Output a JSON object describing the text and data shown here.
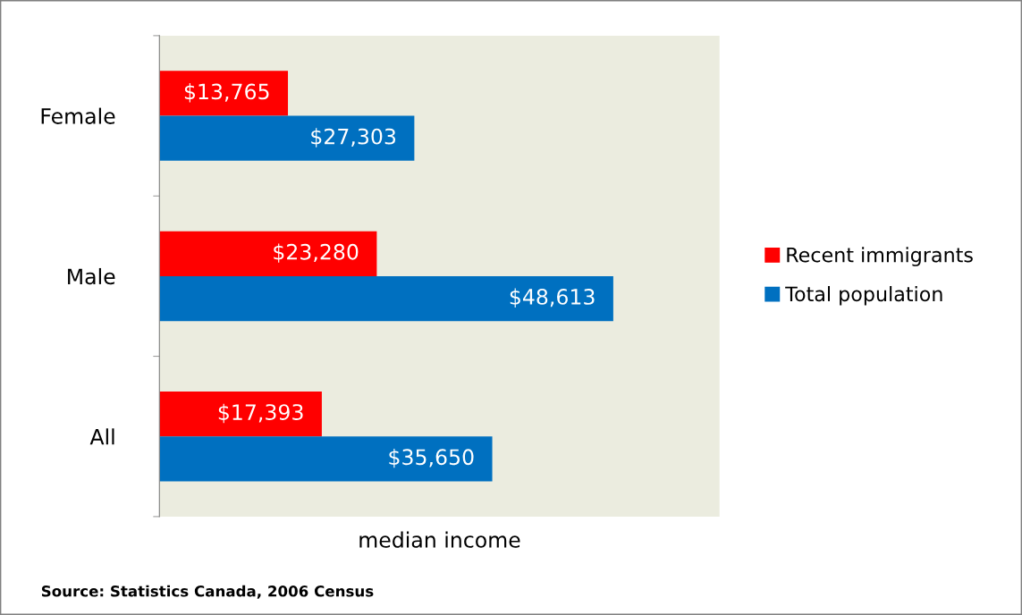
{
  "chart_data": {
    "type": "bar",
    "orientation": "horizontal",
    "xlabel": "median income",
    "categories": [
      "Female",
      "Male",
      "All"
    ],
    "series": [
      {
        "name": "Recent immigrants",
        "color": "#ff0000",
        "values": [
          13765,
          23280,
          17393
        ],
        "value_labels": [
          "$13,765",
          "$23,280",
          "$17,393"
        ]
      },
      {
        "name": "Total population",
        "color": "#0070c0",
        "values": [
          27303,
          48613,
          35650
        ],
        "value_labels": [
          "$27,303",
          "$48,613",
          "$35,650"
        ]
      }
    ],
    "legend": "right",
    "grid": false,
    "annotations": [
      "Source: Statistics Canada, 2006 Census"
    ]
  }
}
